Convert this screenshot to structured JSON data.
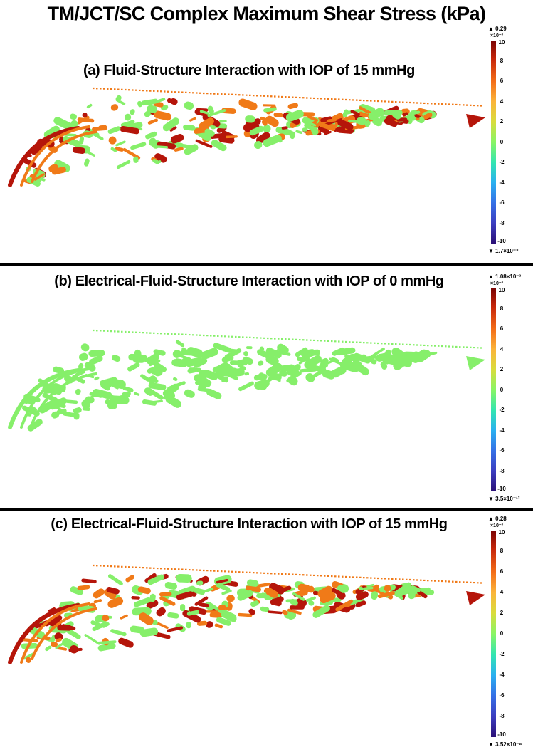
{
  "title": "TM/JCT/SC Complex Maximum Shear Stress (kPa)",
  "colorbar_ticks": [
    "10",
    "8",
    "6",
    "4",
    "2",
    "0",
    "-2",
    "-4",
    "-6",
    "-8",
    "-10"
  ],
  "colorbar_exponent": "×10⁻³",
  "colors": {
    "high": "#b5150a",
    "mid_high": "#f07a18",
    "low": "#86ef6a",
    "background": "#ffffff"
  },
  "panels": [
    {
      "title": "(a) Fluid-Structure Interaction with IOP of 15 mmHg",
      "max_label": "▲ 0.29",
      "min_label": "▼ 1.7×10⁻⁸",
      "stress_level": 0.55
    },
    {
      "title": "(b) Electrical-Fluid-Structure Interaction with IOP of 0 mmHg",
      "max_label": "▲ 1.08×10⁻³",
      "min_label": "▼ 3.5×10⁻¹²",
      "stress_level": 0.0
    },
    {
      "title": "(c) Electrical-Fluid-Structure Interaction with IOP of 15 mmHg",
      "max_label": "▲ 0.28",
      "min_label": "▼ 3.52×10⁻⁸",
      "stress_level": 0.5
    }
  ]
}
